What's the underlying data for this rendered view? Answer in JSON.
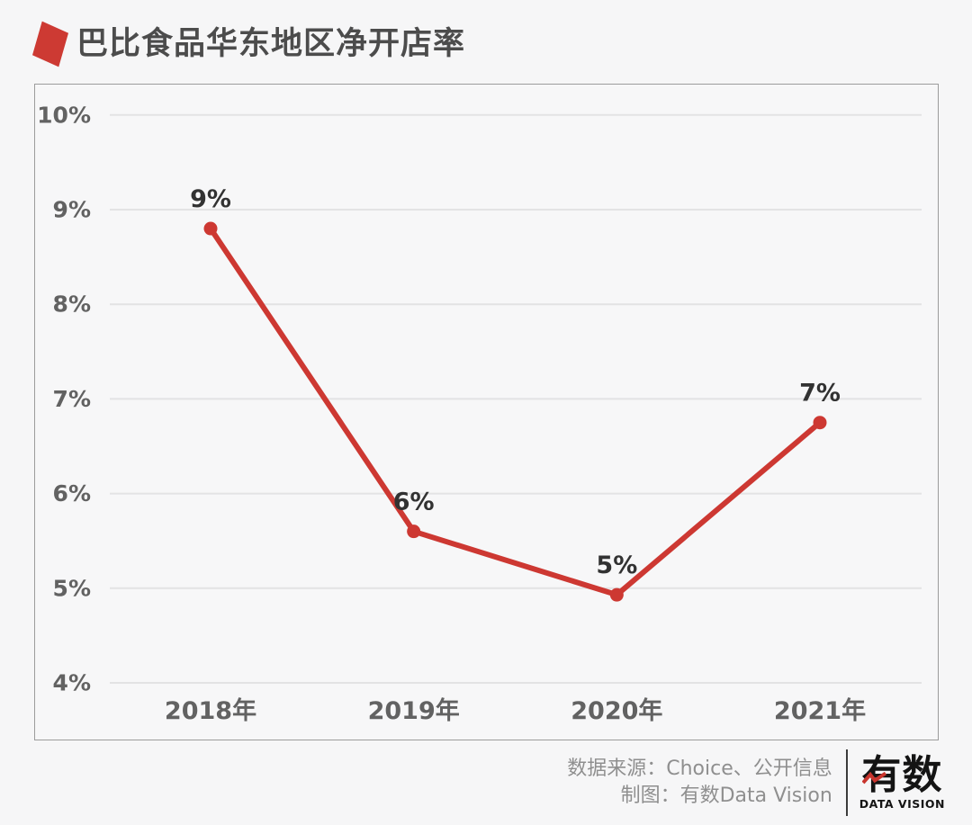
{
  "page": {
    "background": "#f6f6f7"
  },
  "header": {
    "title": "巴比食品华东地区净开店率",
    "accent_color": "#cd3a33"
  },
  "chart_data": {
    "type": "line",
    "title": "巴比食品华东地区净开店率",
    "categories": [
      "2018年",
      "2019年",
      "2020年",
      "2021年"
    ],
    "series": [
      {
        "name": "净开店率",
        "labels": [
          "9%",
          "6%",
          "5%",
          "7%"
        ],
        "values_plotted": [
          8.8,
          5.6,
          4.93,
          6.75
        ]
      }
    ],
    "ylim": [
      4,
      10
    ],
    "yticks": [
      10,
      9,
      8,
      7,
      6,
      5,
      4
    ],
    "ytick_labels": [
      "10%",
      "9%",
      "8%",
      "7%",
      "6%",
      "5%",
      "4%"
    ],
    "grid": "horizontal",
    "legend": "none",
    "line_color": "#cd3832",
    "gridline_color": "#e3e3e4",
    "axis_label_color": "#626262",
    "point_label_color": "#323232"
  },
  "footer": {
    "source_line": "数据来源：Choice、公开信息",
    "credit_line": "制图：有数Data Vision",
    "logo_text": "有数",
    "logo_subtext": "DATA VISION",
    "logo_accent_color": "#c9352e"
  }
}
